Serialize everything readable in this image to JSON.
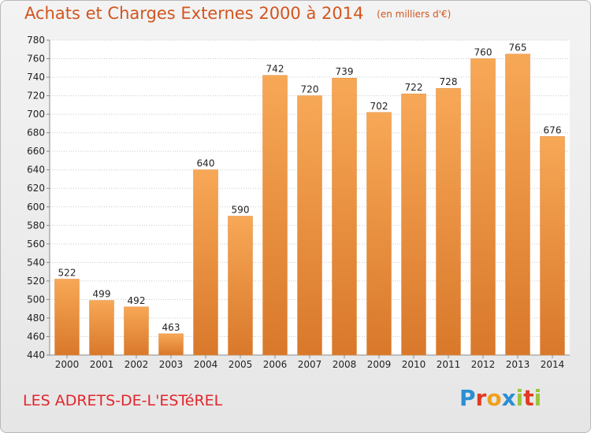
{
  "header": {
    "title": "Achats et Charges Externes 2000 à 2014",
    "subtitle": "(en milliers d'€)"
  },
  "footer": {
    "place": "LES ADRETS-DE-L'ESTéREL",
    "logo": "Proxiti"
  },
  "colors": {
    "bar_top": "#f7a856",
    "bar_bottom": "#d9782a",
    "title": "#d2551f",
    "place": "#e2262c"
  },
  "chart_data": {
    "type": "bar",
    "title": "Achats et Charges Externes 2000 à 2014",
    "subtitle": "(en milliers d'€)",
    "categories": [
      "2000",
      "2001",
      "2002",
      "2003",
      "2004",
      "2005",
      "2006",
      "2007",
      "2008",
      "2009",
      "2010",
      "2011",
      "2012",
      "2013",
      "2014"
    ],
    "values": [
      522,
      499,
      492,
      463,
      640,
      590,
      742,
      720,
      739,
      702,
      722,
      728,
      760,
      765,
      676
    ],
    "ylim": [
      440,
      780
    ],
    "ytick_step": 20,
    "grid": true,
    "xlabel": "",
    "ylabel": ""
  }
}
